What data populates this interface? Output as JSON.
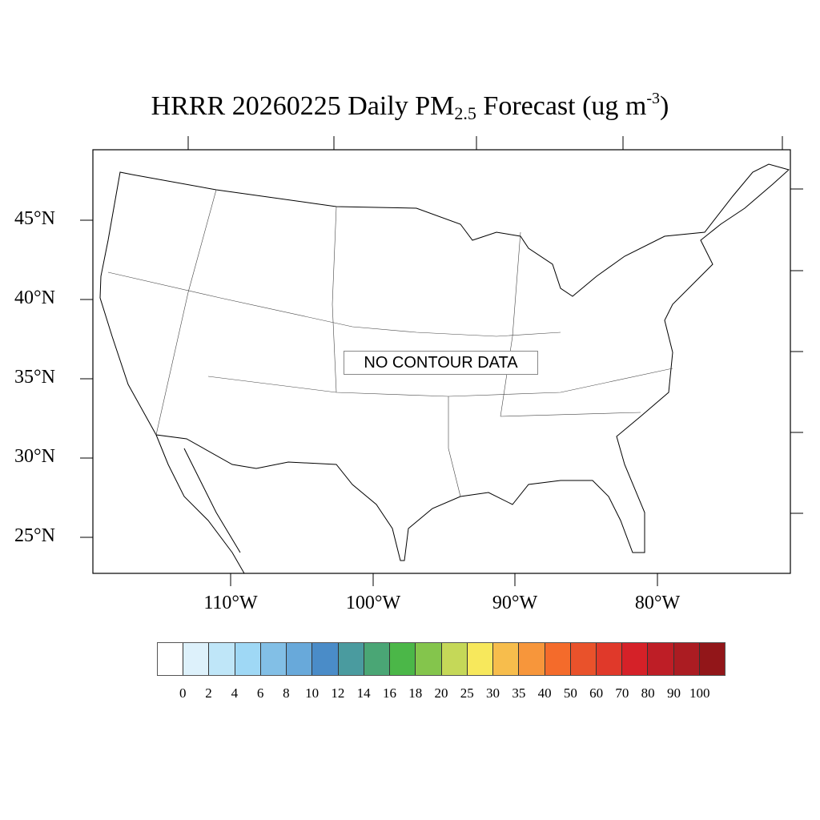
{
  "title": {
    "main": "HRRR 20260225 Daily PM",
    "sub": "2.5",
    "after": " Forecast (ug m",
    "sup": "-3",
    "close": ")"
  },
  "lat_labels": [
    "45°N",
    "40°N",
    "35°N",
    "30°N",
    "25°N"
  ],
  "lon_labels": [
    "110°W",
    "100°W",
    "90°W",
    "80°W"
  ],
  "message": "NO CONTOUR DATA",
  "colorbar": {
    "labels": [
      "0",
      "2",
      "4",
      "6",
      "8",
      "10",
      "12",
      "14",
      "16",
      "18",
      "20",
      "25",
      "30",
      "35",
      "40",
      "50",
      "60",
      "70",
      "80",
      "90",
      "100"
    ],
    "colors": [
      "#ffffff",
      "#ddf1fb",
      "#bfe6f8",
      "#9fd8f5",
      "#82bfe6",
      "#68a9da",
      "#4a8cc8",
      "#4a9b9f",
      "#4aa675",
      "#4bb748",
      "#84c54c",
      "#c5d858",
      "#f7e85c",
      "#f7bd4c",
      "#f7963b",
      "#f46b2b",
      "#e9522b",
      "#e0392a",
      "#d52128",
      "#be1e26",
      "#ab1c22",
      "#921619"
    ]
  }
}
